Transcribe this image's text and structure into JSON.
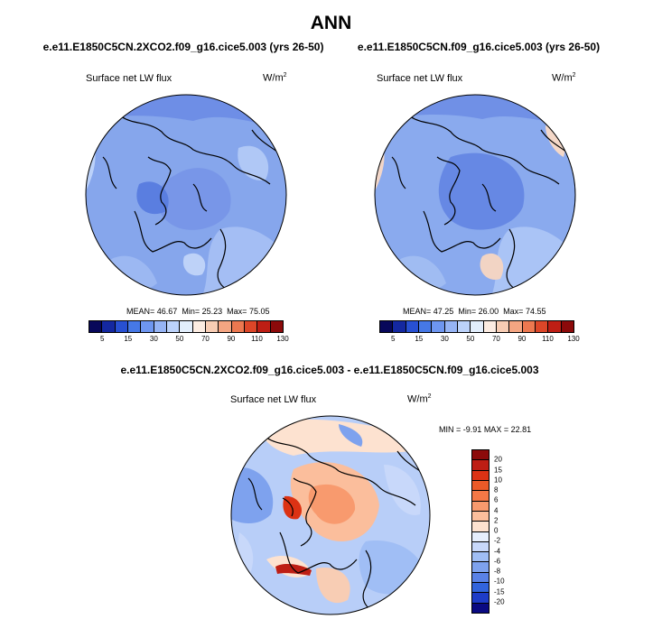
{
  "title": "ANN",
  "panels": [
    {
      "case": "e.e11.E1850C5CN.2XCO2.f09_g16.cice5.003 (yrs 26-50)",
      "variable": "Surface net LW flux",
      "units_base": "W/m",
      "units_exp": "2",
      "mean_label": "MEAN=",
      "mean": "46.67",
      "min_label": "Min=",
      "min": "25.23",
      "max_label": "Max=",
      "max": "75.05"
    },
    {
      "case": "e.e11.E1850C5CN.f09_g16.cice5.003 (yrs 26-50)",
      "variable": "Surface net LW flux",
      "units_base": "W/m",
      "units_exp": "2",
      "mean_label": "MEAN=",
      "mean": "47.25",
      "min_label": "Min=",
      "min": "26.00",
      "max_label": "Max=",
      "max": "74.55"
    }
  ],
  "diff_panel": {
    "case": "e.e11.E1850C5CN.2XCO2.f09_g16.cice5.003 - e.e11.E1850C5CN.f09_g16.cice5.003",
    "variable": "Surface net LW flux",
    "units_base": "W/m",
    "units_exp": "2",
    "min_label": "MIN =",
    "min": "-9.91",
    "max_label": "MAX =",
    "max": "22.81"
  },
  "abs_colorbar": {
    "labels": [
      "5",
      "15",
      "30",
      "50",
      "70",
      "90",
      "110",
      "130"
    ],
    "colors": [
      "#08085a",
      "#1428a0",
      "#2850d2",
      "#4678e6",
      "#6e96f0",
      "#96b4f5",
      "#bcd2fa",
      "#e2eefc",
      "#fcece2",
      "#f8cdb4",
      "#f4a582",
      "#ec7850",
      "#dc4628",
      "#be1e14",
      "#8c0a0a"
    ]
  },
  "diff_colorbar": {
    "labels": [
      "20",
      "15",
      "10",
      "8",
      "6",
      "4",
      "2",
      "0",
      "-2",
      "-4",
      "-6",
      "-8",
      "-10",
      "-15",
      "-20"
    ],
    "colors": [
      "#8c0a0a",
      "#be1e14",
      "#dc3214",
      "#ec5a28",
      "#f47846",
      "#f89a6e",
      "#fbbe9c",
      "#fde2d0",
      "#e6eefc",
      "#c8d8fa",
      "#a0bef5",
      "#7ea2ee",
      "#5a82e6",
      "#3264dc",
      "#1e3cc8",
      "#0a0a82"
    ]
  },
  "colors": {
    "land_outline": "#000000",
    "abs_background": "#86a6ec",
    "diff_background": "#b8cef8"
  }
}
